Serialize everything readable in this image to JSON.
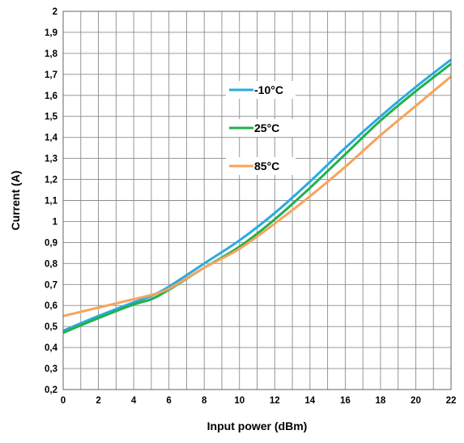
{
  "chart_data": {
    "type": "line",
    "title": "",
    "xlabel": "Input power (dBm)",
    "ylabel": "Current (A)",
    "xlim": [
      0,
      22
    ],
    "ylim": [
      0.2,
      2
    ],
    "x_ticks": [
      "0",
      "2",
      "4",
      "6",
      "8",
      "10",
      "12",
      "14",
      "16",
      "18",
      "20",
      "22"
    ],
    "y_ticks": [
      "0,2",
      "0,3",
      "0,4",
      "0,5",
      "0,6",
      "0,7",
      "0,8",
      "0,9",
      "1",
      "1,1",
      "1,2",
      "1,3",
      "1,4",
      "1,5",
      "1,6",
      "1,7",
      "1,8",
      "1,9",
      "2"
    ],
    "grid": true,
    "legend_position": "center-left",
    "series": [
      {
        "name": "-10°C",
        "color": "#29ABE2",
        "x": [
          0,
          2,
          4,
          5,
          6,
          8,
          10,
          12,
          14,
          16,
          18,
          20,
          22
        ],
        "y": [
          0.48,
          0.55,
          0.615,
          0.645,
          0.69,
          0.8,
          0.91,
          1.04,
          1.19,
          1.35,
          1.5,
          1.64,
          1.77
        ]
      },
      {
        "name": "25°C",
        "color": "#22B04B",
        "x": [
          0,
          2,
          4,
          5,
          6,
          8,
          10,
          12,
          14,
          16,
          18,
          20,
          22
        ],
        "y": [
          0.47,
          0.54,
          0.605,
          0.63,
          0.675,
          0.78,
          0.88,
          1.01,
          1.16,
          1.32,
          1.48,
          1.62,
          1.75
        ]
      },
      {
        "name": "85°C",
        "color": "#F7A35C",
        "x": [
          0,
          2,
          4,
          5,
          6,
          8,
          10,
          12,
          14,
          16,
          18,
          20,
          22
        ],
        "y": [
          0.55,
          0.59,
          0.63,
          0.65,
          0.68,
          0.78,
          0.87,
          0.99,
          1.12,
          1.26,
          1.41,
          1.55,
          1.69
        ]
      }
    ]
  }
}
